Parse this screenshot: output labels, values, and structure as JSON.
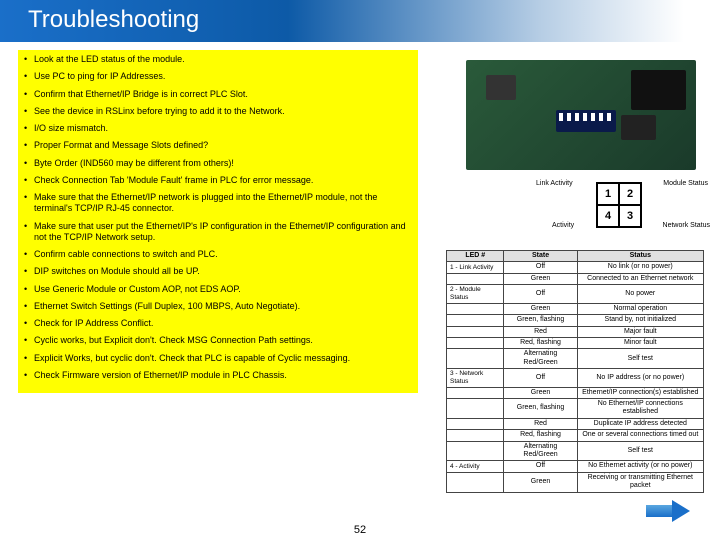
{
  "title": "Troubleshooting",
  "page_number": "52",
  "colors": {
    "banner_start": "#1a6fc9",
    "banner_end": "#0d5aa7",
    "highlight": "#ffff00",
    "board": "#2a5a3a",
    "arrow": "#1a6fc9",
    "table_border": "#444444",
    "table_header_bg": "#e0e0e0"
  },
  "bullets": [
    "Look at the LED status of the module.",
    "Use PC to ping for IP Addresses.",
    "Confirm that Ethernet/IP Bridge is in correct PLC Slot.",
    "See the device in RSLinx before trying to add it to the Network.",
    "I/O size mismatch.",
    "Proper Format and Message Slots defined?",
    "Byte Order (IND560 may be different from others)!",
    "Check Connection Tab  'Module Fault' frame in PLC for error message.",
    "Make sure that the Ethernet/IP network is plugged into the Ethernet/IP module, not the terminal's TCP/IP RJ-45 connector.",
    "Make sure that user put the Ethernet/IP's IP configuration in the Ethernet/IP configuration and not the TCP/IP Network setup.",
    "Confirm cable connections to switch and PLC.",
    "DIP switches on Module should all be UP.",
    "Use Generic Module or Custom AOP, not EDS AOP.",
    "Ethernet Switch Settings (Full Duplex, 100 MBPS, Auto Negotiate).",
    "Check for IP Address Conflict.",
    "Cyclic works, but Explicit don't.  Check MSG Connection Path settings.",
    "Explicit Works, but cyclic don't.  Check that PLC is capable of Cyclic messaging.",
    "Check Firmware version of Ethernet/IP module in PLC Chassis."
  ],
  "led_diagram": {
    "cells": [
      "1",
      "2",
      "4",
      "3"
    ],
    "labels": {
      "tl": "Link Activity",
      "tr": "Module Status",
      "bl": "Activity",
      "br": "Network Status"
    }
  },
  "status_table": {
    "headers": [
      "LED #",
      "State",
      "Status"
    ],
    "rows": [
      [
        "1 - Link Activity",
        "Off",
        "No link (or no power)"
      ],
      [
        "",
        "Green",
        "Connected to an Ethernet network"
      ],
      [
        "2 - Module Status",
        "Off",
        "No power"
      ],
      [
        "",
        "Green",
        "Normal operation"
      ],
      [
        "",
        "Green, flashing",
        "Stand by, not initialized"
      ],
      [
        "",
        "Red",
        "Major fault"
      ],
      [
        "",
        "Red, flashing",
        "Minor fault"
      ],
      [
        "",
        "Alternating Red/Green",
        "Self test"
      ],
      [
        "3 - Network Status",
        "Off",
        "No IP address (or no power)"
      ],
      [
        "",
        "Green",
        "Ethernet/IP connection(s) established"
      ],
      [
        "",
        "Green, flashing",
        "No Ethernet/IP connections established"
      ],
      [
        "",
        "Red",
        "Duplicate IP address detected"
      ],
      [
        "",
        "Red, flashing",
        "One or several connections timed out"
      ],
      [
        "",
        "Alternating Red/Green",
        "Self test"
      ],
      [
        "4 - Activity",
        "Off",
        "No Ethernet activity (or no power)"
      ],
      [
        "",
        "Green",
        "Receiving or transmitting Ethernet packet"
      ]
    ]
  }
}
